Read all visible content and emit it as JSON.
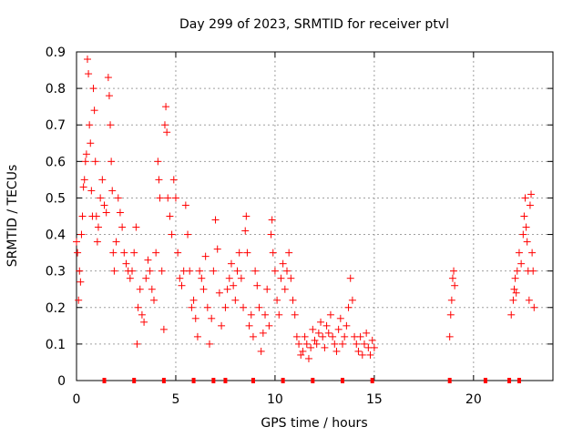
{
  "chart_data": {
    "type": "scatter",
    "title": "Day 299 of 2023, SRMTID for receiver ptvl",
    "xlabel": "GPS time / hours",
    "ylabel": "SRMTID / TECUs",
    "xlim": [
      0,
      24
    ],
    "ylim": [
      0,
      0.9
    ],
    "x_ticks": [
      0,
      5,
      10,
      15,
      20
    ],
    "y_ticks": [
      0,
      0.1,
      0.2,
      0.3,
      0.4,
      0.5,
      0.6,
      0.7,
      0.8,
      0.9
    ],
    "x_tick_labels": [
      "0",
      "5",
      "10",
      "15",
      "20"
    ],
    "y_tick_labels": [
      "0",
      "0.1",
      "0.2",
      "0.3",
      "0.4",
      "0.5",
      "0.6",
      "0.7",
      "0.8",
      "0.9"
    ],
    "grid": true,
    "marker": "+",
    "color": "#ff0000",
    "zero_markers_x": [
      1.4,
      2.9,
      4.4,
      5.9,
      6.9,
      7.5,
      8.9,
      10.4,
      11.9,
      13.4,
      14.9,
      18.8,
      20.6,
      21.8,
      22.3
    ],
    "series": [
      {
        "name": "SRMTID",
        "points": [
          [
            0.0,
            0.38
          ],
          [
            0.05,
            0.35
          ],
          [
            0.1,
            0.22
          ],
          [
            0.15,
            0.3
          ],
          [
            0.2,
            0.27
          ],
          [
            0.25,
            0.4
          ],
          [
            0.3,
            0.45
          ],
          [
            0.35,
            0.53
          ],
          [
            0.4,
            0.55
          ],
          [
            0.45,
            0.6
          ],
          [
            0.5,
            0.62
          ],
          [
            0.55,
            0.88
          ],
          [
            0.6,
            0.84
          ],
          [
            0.65,
            0.7
          ],
          [
            0.7,
            0.65
          ],
          [
            0.75,
            0.52
          ],
          [
            0.8,
            0.45
          ],
          [
            0.85,
            0.8
          ],
          [
            0.9,
            0.74
          ],
          [
            0.95,
            0.6
          ],
          [
            1.0,
            0.45
          ],
          [
            1.05,
            0.38
          ],
          [
            1.1,
            0.42
          ],
          [
            1.2,
            0.5
          ],
          [
            1.3,
            0.55
          ],
          [
            1.4,
            0.48
          ],
          [
            1.5,
            0.46
          ],
          [
            1.6,
            0.83
          ],
          [
            1.65,
            0.78
          ],
          [
            1.7,
            0.7
          ],
          [
            1.75,
            0.6
          ],
          [
            1.8,
            0.52
          ],
          [
            1.85,
            0.35
          ],
          [
            1.9,
            0.3
          ],
          [
            2.0,
            0.38
          ],
          [
            2.1,
            0.5
          ],
          [
            2.2,
            0.46
          ],
          [
            2.3,
            0.42
          ],
          [
            2.4,
            0.35
          ],
          [
            2.5,
            0.32
          ],
          [
            2.6,
            0.3
          ],
          [
            2.7,
            0.28
          ],
          [
            2.8,
            0.3
          ],
          [
            2.9,
            0.35
          ],
          [
            3.0,
            0.42
          ],
          [
            3.05,
            0.1
          ],
          [
            3.1,
            0.2
          ],
          [
            3.2,
            0.25
          ],
          [
            3.3,
            0.18
          ],
          [
            3.4,
            0.16
          ],
          [
            3.5,
            0.28
          ],
          [
            3.6,
            0.33
          ],
          [
            3.7,
            0.3
          ],
          [
            3.8,
            0.25
          ],
          [
            3.9,
            0.22
          ],
          [
            4.0,
            0.35
          ],
          [
            4.1,
            0.6
          ],
          [
            4.15,
            0.55
          ],
          [
            4.2,
            0.5
          ],
          [
            4.3,
            0.3
          ],
          [
            4.4,
            0.14
          ],
          [
            4.45,
            0.7
          ],
          [
            4.5,
            0.75
          ],
          [
            4.55,
            0.68
          ],
          [
            4.6,
            0.5
          ],
          [
            4.7,
            0.45
          ],
          [
            4.8,
            0.4
          ],
          [
            4.9,
            0.55
          ],
          [
            5.0,
            0.5
          ],
          [
            5.1,
            0.35
          ],
          [
            5.2,
            0.28
          ],
          [
            5.3,
            0.26
          ],
          [
            5.4,
            0.3
          ],
          [
            5.5,
            0.48
          ],
          [
            5.6,
            0.4
          ],
          [
            5.7,
            0.3
          ],
          [
            5.8,
            0.2
          ],
          [
            5.9,
            0.22
          ],
          [
            6.0,
            0.17
          ],
          [
            6.1,
            0.12
          ],
          [
            6.2,
            0.3
          ],
          [
            6.3,
            0.28
          ],
          [
            6.4,
            0.25
          ],
          [
            6.5,
            0.34
          ],
          [
            6.6,
            0.2
          ],
          [
            6.7,
            0.1
          ],
          [
            6.8,
            0.17
          ],
          [
            6.9,
            0.3
          ],
          [
            7.0,
            0.44
          ],
          [
            7.1,
            0.36
          ],
          [
            7.2,
            0.24
          ],
          [
            7.3,
            0.15
          ],
          [
            7.5,
            0.2
          ],
          [
            7.6,
            0.25
          ],
          [
            7.7,
            0.28
          ],
          [
            7.8,
            0.32
          ],
          [
            7.9,
            0.26
          ],
          [
            8.0,
            0.22
          ],
          [
            8.1,
            0.3
          ],
          [
            8.2,
            0.35
          ],
          [
            8.3,
            0.28
          ],
          [
            8.4,
            0.2
          ],
          [
            8.5,
            0.41
          ],
          [
            8.55,
            0.45
          ],
          [
            8.6,
            0.35
          ],
          [
            8.7,
            0.15
          ],
          [
            8.8,
            0.18
          ],
          [
            8.9,
            0.12
          ],
          [
            9.0,
            0.3
          ],
          [
            9.1,
            0.26
          ],
          [
            9.2,
            0.2
          ],
          [
            9.3,
            0.08
          ],
          [
            9.4,
            0.13
          ],
          [
            9.5,
            0.18
          ],
          [
            9.6,
            0.25
          ],
          [
            9.7,
            0.15
          ],
          [
            9.8,
            0.4
          ],
          [
            9.85,
            0.44
          ],
          [
            9.9,
            0.35
          ],
          [
            10.0,
            0.3
          ],
          [
            10.1,
            0.22
          ],
          [
            10.2,
            0.18
          ],
          [
            10.3,
            0.28
          ],
          [
            10.4,
            0.32
          ],
          [
            10.5,
            0.25
          ],
          [
            10.6,
            0.3
          ],
          [
            10.7,
            0.35
          ],
          [
            10.8,
            0.28
          ],
          [
            10.9,
            0.22
          ],
          [
            11.0,
            0.18
          ],
          [
            11.1,
            0.12
          ],
          [
            11.2,
            0.1
          ],
          [
            11.3,
            0.07
          ],
          [
            11.4,
            0.08
          ],
          [
            11.5,
            0.12
          ],
          [
            11.6,
            0.1
          ],
          [
            11.7,
            0.06
          ],
          [
            11.8,
            0.09
          ],
          [
            11.9,
            0.14
          ],
          [
            12.0,
            0.11
          ],
          [
            12.1,
            0.1
          ],
          [
            12.2,
            0.13
          ],
          [
            12.3,
            0.16
          ],
          [
            12.4,
            0.12
          ],
          [
            12.5,
            0.09
          ],
          [
            12.6,
            0.15
          ],
          [
            12.7,
            0.13
          ],
          [
            12.8,
            0.18
          ],
          [
            12.9,
            0.12
          ],
          [
            13.0,
            0.1
          ],
          [
            13.1,
            0.08
          ],
          [
            13.2,
            0.14
          ],
          [
            13.3,
            0.17
          ],
          [
            13.4,
            0.1
          ],
          [
            13.5,
            0.12
          ],
          [
            13.6,
            0.15
          ],
          [
            13.7,
            0.2
          ],
          [
            13.8,
            0.28
          ],
          [
            13.9,
            0.22
          ],
          [
            14.0,
            0.12
          ],
          [
            14.1,
            0.1
          ],
          [
            14.2,
            0.08
          ],
          [
            14.3,
            0.12
          ],
          [
            14.4,
            0.07
          ],
          [
            14.5,
            0.1
          ],
          [
            14.6,
            0.13
          ],
          [
            14.7,
            0.09
          ],
          [
            14.8,
            0.07
          ],
          [
            14.9,
            0.11
          ],
          [
            15.0,
            0.09
          ],
          [
            18.8,
            0.12
          ],
          [
            18.85,
            0.18
          ],
          [
            18.9,
            0.22
          ],
          [
            18.95,
            0.28
          ],
          [
            19.0,
            0.3
          ],
          [
            19.05,
            0.26
          ],
          [
            21.9,
            0.18
          ],
          [
            22.0,
            0.22
          ],
          [
            22.05,
            0.25
          ],
          [
            22.1,
            0.28
          ],
          [
            22.15,
            0.24
          ],
          [
            22.2,
            0.3
          ],
          [
            22.3,
            0.35
          ],
          [
            22.4,
            0.32
          ],
          [
            22.5,
            0.4
          ],
          [
            22.55,
            0.45
          ],
          [
            22.6,
            0.5
          ],
          [
            22.65,
            0.42
          ],
          [
            22.7,
            0.38
          ],
          [
            22.75,
            0.3
          ],
          [
            22.8,
            0.22
          ],
          [
            22.85,
            0.48
          ],
          [
            22.9,
            0.51
          ],
          [
            22.95,
            0.35
          ],
          [
            23.0,
            0.3
          ],
          [
            23.05,
            0.2
          ]
        ]
      }
    ]
  }
}
